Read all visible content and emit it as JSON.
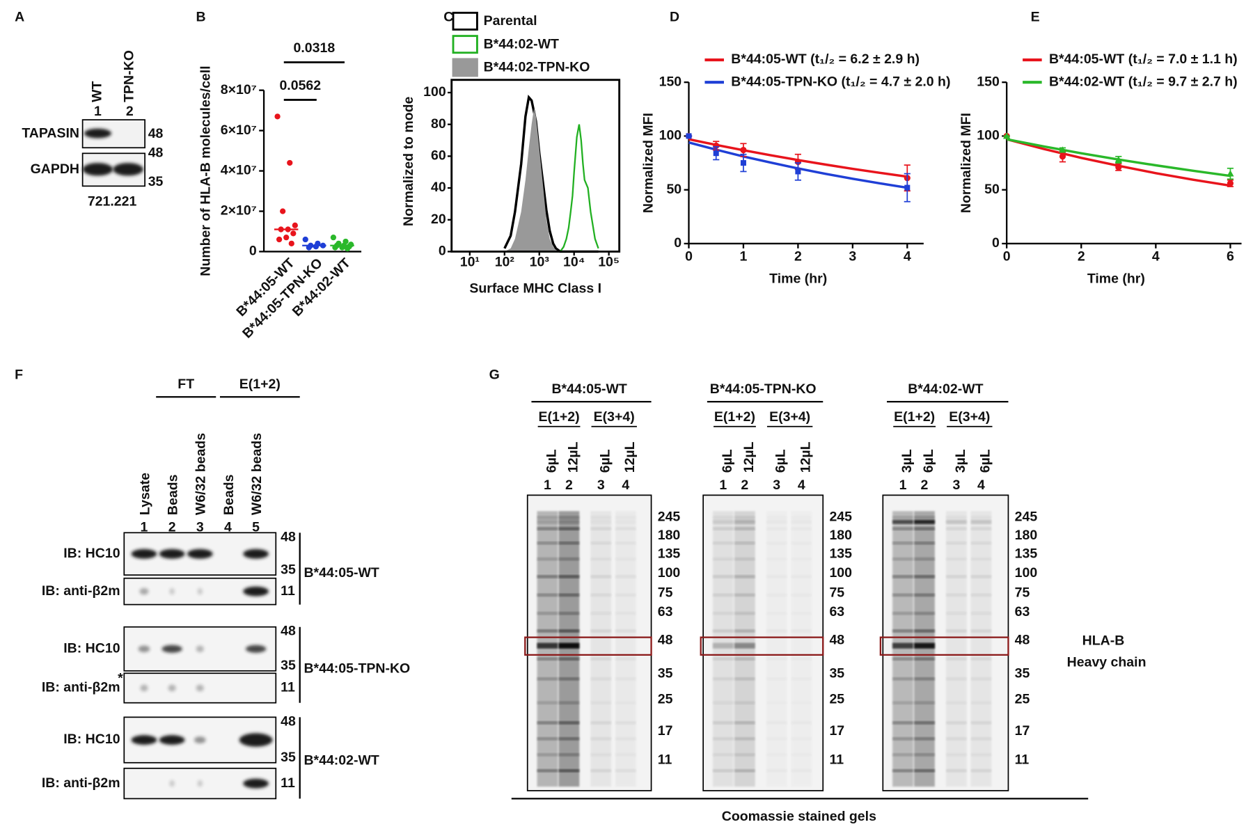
{
  "panel_labels": [
    "A",
    "B",
    "C",
    "D",
    "E",
    "F",
    "G"
  ],
  "panel_a": {
    "lanes": [
      {
        "label": "WT",
        "number": "1"
      },
      {
        "label": "TPN-KO",
        "number": "2"
      }
    ],
    "blots": [
      {
        "label": "TAPASIN",
        "markers": [
          "48"
        ]
      },
      {
        "label": "GAPDH",
        "markers": [
          "48",
          "35"
        ]
      }
    ],
    "cell_line": "721.221"
  },
  "chart_data": [
    {
      "type": "dot",
      "y_label": "Number of HLA-B molecules/cell",
      "categories": [
        "B*44:05-WT",
        "B*44:05-TPN-KO",
        "B*44:02-WT"
      ],
      "groups": [
        {
          "color": "#e8141c",
          "values": [
            67000000,
            44000000,
            20000000,
            13000000,
            11000000,
            11000000,
            9000000,
            7000000,
            6000000,
            4000000
          ],
          "median": 11000000
        },
        {
          "color": "#1f3fd6",
          "values": [
            6000000,
            4000000,
            3000000,
            3000000,
            2500000,
            2000000
          ],
          "median": 3000000
        },
        {
          "color": "#2ab82a",
          "values": [
            7000000,
            5000000,
            4000000,
            3500000,
            3000000,
            3000000,
            2500000,
            2000000,
            2000000,
            1500000
          ],
          "median": 3000000
        }
      ],
      "ylim": [
        0,
        80000000
      ],
      "yticks": [
        0,
        {
          "value": 20000000,
          "label": "2×10⁷"
        },
        {
          "value": 40000000,
          "label": "4×10⁷"
        },
        {
          "value": 60000000,
          "label": "6×10⁷"
        },
        {
          "value": 80000000,
          "label": "8×10⁷"
        }
      ],
      "p_values": [
        0.0562,
        0.0318
      ]
    },
    {
      "type": "histogram",
      "x_label": "Surface MHC Class I",
      "y_label": "Normalized to mode",
      "log_x": true,
      "x": [
        100,
        150,
        200,
        300,
        400,
        500,
        600,
        700,
        800,
        1000,
        1300,
        1600,
        2000,
        2500,
        3000,
        4000,
        5000,
        6000,
        7000,
        8000,
        9000,
        10000,
        12000,
        14000,
        16000,
        18000,
        20000,
        25000,
        30000,
        40000,
        50000
      ],
      "series": [
        {
          "name": "Parental",
          "color": "#000000",
          "filled": false,
          "values": [
            2,
            10,
            25,
            55,
            85,
            97,
            95,
            88,
            82,
            62,
            42,
            26,
            13,
            5,
            2,
            0,
            0,
            0,
            0,
            0,
            0,
            0,
            0,
            0,
            0,
            0,
            0,
            0,
            0,
            0,
            0
          ]
        },
        {
          "name": "B*44:02-WT",
          "color": "#22b022",
          "filled": false,
          "values": [
            0,
            0,
            0,
            0,
            0,
            0,
            0,
            0,
            0,
            0,
            0,
            0,
            0,
            0,
            0,
            0,
            3,
            8,
            15,
            25,
            35,
            50,
            72,
            80,
            70,
            55,
            45,
            40,
            25,
            8,
            2
          ]
        },
        {
          "name": "B*44:02-TPN-KO",
          "color": "#999999",
          "filled": true,
          "values": [
            0,
            2,
            8,
            25,
            45,
            65,
            80,
            90,
            85,
            65,
            40,
            20,
            8,
            3,
            1,
            0,
            0,
            0,
            0,
            0,
            0,
            0,
            0,
            0,
            0,
            0,
            0,
            0,
            0,
            0,
            0
          ]
        }
      ],
      "xlim": [
        3,
        200000
      ],
      "xticks": [
        {
          "value": 10,
          "label": "10¹"
        },
        {
          "value": 100,
          "label": "10²"
        },
        {
          "value": 1000,
          "label": "10³"
        },
        {
          "value": 10000,
          "label": "10⁴"
        },
        {
          "value": 100000,
          "label": "10⁵"
        }
      ],
      "ylim": [
        0,
        108
      ],
      "yticks": [
        0,
        20,
        40,
        60,
        80,
        100
      ]
    },
    {
      "type": "line",
      "x_label": "Time (hr)",
      "y_label": "Normalized MFI",
      "x": [
        0,
        0.5,
        1,
        2,
        4
      ],
      "fit_x": [
        0,
        0.5,
        1,
        1.5,
        2,
        2.5,
        3,
        3.5,
        4
      ],
      "series": [
        {
          "name": "B*44:05-WT (t₁/₂ = 6.2 ± 2.9 h)",
          "color": "#e8141c",
          "marker": "circle",
          "values": [
            100,
            91,
            87,
            76,
            61
          ],
          "errors": [
            0,
            4,
            6,
            7,
            12
          ],
          "fit": [
            97,
            91.8,
            86.8,
            82.1,
            77.7,
            73.5,
            69.5,
            65.8,
            62.2
          ]
        },
        {
          "name": "B*44:05-TPN-KO (t₁/₂ = 4.7 ± 2.0 h)",
          "color": "#1f3fd6",
          "marker": "square",
          "values": [
            100,
            84,
            75,
            67,
            52
          ],
          "errors": [
            0,
            6,
            8,
            8,
            13
          ],
          "fit": [
            94,
            87.3,
            81,
            75.3,
            69.9,
            64.9,
            60.3,
            56,
            52
          ]
        }
      ],
      "xlim": [
        0,
        4.3
      ],
      "xticks": [
        0,
        1,
        2,
        3,
        4
      ],
      "ylim": [
        0,
        150
      ],
      "yticks": [
        0,
        50,
        100,
        150
      ]
    },
    {
      "type": "line",
      "x_label": "Time (hr)",
      "y_label": "Normalized MFI",
      "x": [
        0,
        1.5,
        3,
        6
      ],
      "fit_x": [
        0,
        1,
        2,
        3,
        4,
        5,
        6
      ],
      "series": [
        {
          "name": "B*44:05-WT (t₁/₂ = 7.0 ± 1.1 h)",
          "color": "#e8141c",
          "marker": "circle",
          "values": [
            100,
            81,
            71,
            56
          ],
          "errors": [
            0,
            5,
            3,
            3
          ],
          "fit": [
            97,
            87.9,
            79.7,
            72.3,
            65.5,
            59.4,
            53.9
          ]
        },
        {
          "name": "B*44:02-WT (t₁/₂ = 9.7 ± 2.7 h)",
          "color": "#2ab82a",
          "marker": "triangle",
          "values": [
            100,
            87,
            78,
            65
          ],
          "errors": [
            0,
            2,
            3,
            5
          ],
          "fit": [
            97,
            90.3,
            84,
            78.2,
            72.8,
            67.7,
            63
          ]
        }
      ],
      "xlim": [
        0,
        6.3
      ],
      "xticks": [
        0,
        2,
        4,
        6
      ],
      "ylim": [
        0,
        150
      ],
      "yticks": [
        0,
        50,
        100,
        150
      ]
    }
  ],
  "panel_f": {
    "headers": [
      "FT",
      "E(1+2)"
    ],
    "lanes": [
      {
        "label": "Lysate",
        "number": "1"
      },
      {
        "label": "Beads",
        "number": "2"
      },
      {
        "label": "W6/32 beads",
        "number": "3"
      },
      {
        "label": "Beads",
        "number": "4"
      },
      {
        "label": "W6/32 beads",
        "number": "5"
      }
    ],
    "groups": [
      {
        "name": "B*44:05-WT",
        "blots": [
          {
            "label": "IB: HC10",
            "markers": [
              "48",
              "35"
            ]
          },
          {
            "label": "IB: anti-β2m",
            "markers": [
              "11"
            ]
          }
        ]
      },
      {
        "name": "B*44:05-TPN-KO",
        "asterisk": "*",
        "blots": [
          {
            "label": "IB: HC10",
            "markers": [
              "48",
              "35"
            ]
          },
          {
            "label": "IB: anti-β2m",
            "markers": [
              "11"
            ]
          }
        ]
      },
      {
        "name": "B*44:02-WT",
        "blots": [
          {
            "label": "IB: HC10",
            "markers": [
              "48",
              "35"
            ]
          },
          {
            "label": "IB: anti-β2m",
            "markers": [
              "11"
            ]
          }
        ]
      }
    ]
  },
  "panel_g": {
    "gels": [
      {
        "title": "B*44:05-WT",
        "fractions": [
          "E(1+2)",
          "E(3+4)"
        ],
        "volumes": [
          "6µL",
          "12µL",
          "6µL",
          "12µL"
        ],
        "lanes": [
          "1",
          "2",
          "3",
          "4"
        ]
      },
      {
        "title": "B*44:05-TPN-KO",
        "fractions": [
          "E(1+2)",
          "E(3+4)"
        ],
        "volumes": [
          "6µL",
          "12µL",
          "6µL",
          "12µL"
        ],
        "lanes": [
          "1",
          "2",
          "3",
          "4"
        ]
      },
      {
        "title": "B*44:02-WT",
        "fractions": [
          "E(1+2)",
          "E(3+4)"
        ],
        "volumes": [
          "3µL",
          "6µL",
          "3µL",
          "6µL"
        ],
        "lanes": [
          "1",
          "2",
          "3",
          "4"
        ]
      }
    ],
    "markers": [
      "245",
      "180",
      "135",
      "100",
      "75",
      "63",
      "48",
      "35",
      "25",
      "17",
      "11"
    ],
    "band_label": [
      "HLA-B",
      "Heavy chain"
    ],
    "caption": "Coomassie stained gels"
  }
}
